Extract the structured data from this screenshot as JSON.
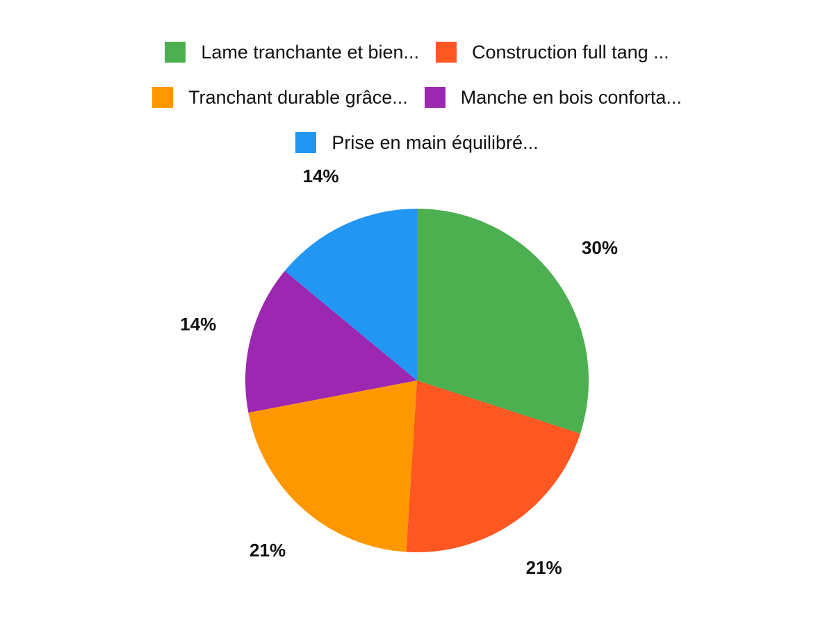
{
  "chart_data": {
    "type": "pie",
    "title": "",
    "legend_placement": "top",
    "start": "top, clockwise",
    "slices": [
      {
        "name": "Lame tranchante et bien...",
        "value": 30,
        "label": "30%",
        "color": "#4CAF50"
      },
      {
        "name": "Construction full tang ...",
        "value": 21,
        "label": "21%",
        "color": "#FF5722"
      },
      {
        "name": "Tranchant durable grâce...",
        "value": 21,
        "label": "21%",
        "color": "#FF9800"
      },
      {
        "name": "Manche en bois conforta...",
        "value": 14,
        "label": "14%",
        "color": "#9C27B0"
      },
      {
        "name": "Prise en main équilibré...",
        "value": 14,
        "label": "14%",
        "color": "#2196F3"
      }
    ]
  }
}
